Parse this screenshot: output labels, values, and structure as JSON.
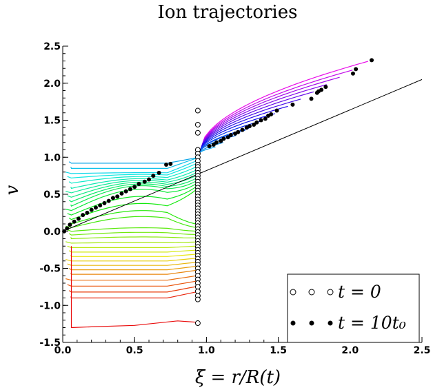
{
  "chart_data": {
    "type": "line",
    "title": "Ion trajectories",
    "xlabel": "ξ = r/R(t)",
    "ylabel": "v",
    "xlim": [
      0,
      2.5
    ],
    "ylim": [
      -1.5,
      2.5
    ],
    "x_ticks": [
      "0.0",
      "0.5",
      "1.0",
      "1.5",
      "2.0",
      "2.5"
    ],
    "y_ticks": [
      "2.5",
      "2.0",
      "1.5",
      "1.0",
      "0.5",
      "0.0",
      "-0.5",
      "-1.0",
      "-1.5"
    ],
    "x_tick_values": [
      0,
      0.5,
      1.0,
      1.5,
      2.0,
      2.5
    ],
    "y_tick_values": [
      2.5,
      2.0,
      1.5,
      1.0,
      0.5,
      0.0,
      -0.5,
      -1.0,
      -1.5
    ],
    "legend": {
      "placement": "bottom-right",
      "entries": [
        {
          "label": "t = 0",
          "marker": "open-circle"
        },
        {
          "label": "t = 10t₀",
          "marker": "filled-circle"
        }
      ]
    },
    "reference_line": {
      "x": [
        0,
        2.5
      ],
      "y": [
        0,
        2.05
      ]
    },
    "initial_points": {
      "x": 0.94,
      "y": [
        1.63,
        1.44,
        1.33,
        1.1,
        1.05,
        1.0,
        0.95,
        0.9,
        0.87,
        0.83,
        0.79,
        0.75,
        0.71,
        0.67,
        0.63,
        0.59,
        0.55,
        0.51,
        0.47,
        0.43,
        0.39,
        0.35,
        0.31,
        0.27,
        0.23,
        0.19,
        0.15,
        0.11,
        0.07,
        0.03,
        -0.01,
        -0.05,
        -0.09,
        -0.13,
        -0.17,
        -0.21,
        -0.25,
        -0.29,
        -0.33,
        -0.37,
        -0.41,
        -0.45,
        -0.5,
        -0.55,
        -0.6,
        -0.65,
        -0.7,
        -0.75,
        -0.81,
        -0.87,
        -0.92,
        -1.24
      ]
    },
    "final_points": {
      "x": [
        2.15,
        2.04,
        2.02,
        1.83,
        1.8,
        1.78,
        1.77,
        1.73,
        1.6,
        1.49,
        1.45,
        1.43,
        1.41,
        1.38,
        1.35,
        1.33,
        1.3,
        1.28,
        1.25,
        1.22,
        1.2,
        1.17,
        1.15,
        1.12,
        1.1,
        1.07,
        1.05,
        1.02,
        0.75,
        0.72,
        0.67,
        0.63,
        0.6,
        0.57,
        0.53,
        0.5,
        0.47,
        0.44,
        0.41,
        0.38,
        0.35,
        0.32,
        0.29,
        0.26,
        0.23,
        0.2,
        0.17,
        0.14,
        0.11,
        0.08,
        0.05,
        0.03,
        0.01
      ],
      "y": [
        2.31,
        2.19,
        2.13,
        1.95,
        1.91,
        1.89,
        1.87,
        1.79,
        1.71,
        1.63,
        1.58,
        1.56,
        1.52,
        1.5,
        1.47,
        1.44,
        1.42,
        1.4,
        1.37,
        1.34,
        1.32,
        1.3,
        1.27,
        1.25,
        1.22,
        1.2,
        1.17,
        1.15,
        0.91,
        0.9,
        0.79,
        0.75,
        0.7,
        0.67,
        0.64,
        0.6,
        0.57,
        0.54,
        0.51,
        0.47,
        0.45,
        0.41,
        0.38,
        0.35,
        0.32,
        0.29,
        0.25,
        0.22,
        0.17,
        0.13,
        0.09,
        0.04,
        0.0
      ]
    },
    "trajectory_levels": [
      2.3,
      2.18,
      2.08,
      1.98,
      1.88,
      1.78,
      1.68,
      1.58,
      1.48,
      1.38,
      1.28,
      1.18,
      1.12,
      1.35,
      0.92,
      0.85,
      0.78,
      0.72,
      0.65,
      0.58,
      0.52,
      0.46,
      0.4,
      0.34,
      0.28,
      0.22,
      0.16,
      0.1,
      0.05,
      0.0,
      -0.05,
      -0.1,
      -0.16,
      -0.22,
      -0.28,
      -0.34,
      -0.4,
      -0.46,
      -0.52,
      -0.58,
      -0.66,
      -0.74,
      -0.82,
      -0.9,
      -1.25
    ]
  }
}
